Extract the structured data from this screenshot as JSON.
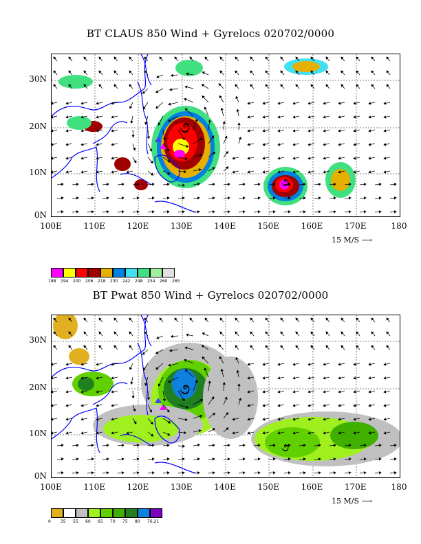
{
  "panel1": {
    "title": "BT CLAUS 850 Wind + Gyrelocs 020702/0000",
    "y_labels": [
      "30N",
      "20N",
      "10N",
      "0N"
    ],
    "x_labels": [
      "100E",
      "110E",
      "120E",
      "130E",
      "140E",
      "150E",
      "160E",
      "170E",
      "180"
    ],
    "scale_label": "15 M/S",
    "colorbar_colors": [
      "#ff00ff",
      "#ffff00",
      "#ff0000",
      "#a00000",
      "#e6b000",
      "#0080e0",
      "#40e0f0",
      "#40e080",
      "#a0f0a0",
      "#e0e0e0"
    ],
    "colorbar_labels": [
      "188",
      "194",
      "200",
      "206",
      "218",
      "230",
      "242",
      "248",
      "254",
      "260",
      "265"
    ]
  },
  "panel2": {
    "title": "BT Pwat 850 Wind + Gyrelocs 020702/0000",
    "y_labels": [
      "30N",
      "20N",
      "10N",
      "0N"
    ],
    "x_labels": [
      "100E",
      "110E",
      "120E",
      "130E",
      "140E",
      "150E",
      "160E",
      "170E",
      "180"
    ],
    "scale_label": "15 M/S",
    "colorbar_colors": [
      "#e0b020",
      "#ffffff",
      "#c0c0c0",
      "#a0f020",
      "#60d000",
      "#40b000",
      "#208020",
      "#1080e0",
      "#8000c0"
    ],
    "colorbar_labels": [
      "0",
      "35",
      "55",
      "60",
      "65",
      "70",
      "75",
      "80",
      "76.21"
    ]
  }
}
